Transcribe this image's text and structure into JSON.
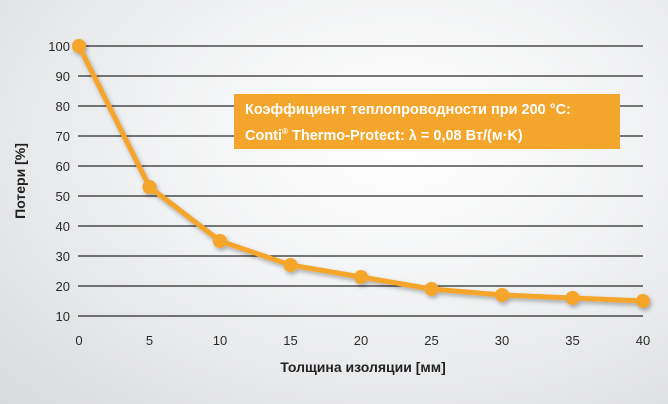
{
  "chart_data": {
    "type": "line",
    "title": "",
    "xlabel": "Толщина изоляции [мм]",
    "ylabel": "Потери [%]",
    "x": [
      0,
      5,
      10,
      15,
      20,
      25,
      30,
      35,
      40
    ],
    "series": [
      {
        "name": "Conti Thermo-Protect",
        "values": [
          100,
          53,
          35,
          27,
          23,
          19,
          17,
          16,
          15
        ]
      }
    ],
    "xlim": [
      0,
      40
    ],
    "ylim": [
      10,
      100
    ],
    "xticks": [
      0,
      5,
      10,
      15,
      20,
      25,
      30,
      35,
      40
    ],
    "yticks": [
      10,
      20,
      30,
      40,
      50,
      60,
      70,
      80,
      90,
      100
    ],
    "grid": "horizontal",
    "colors": {
      "line": "#f4a52b",
      "grid": "#2b2b2b",
      "box": "#f4a52b"
    },
    "annotation": {
      "line1": "Коэффициент теплопроводности при 200 °C:",
      "line2_brand": "Conti",
      "line2_mark": "®",
      "line2_rest": " Thermo-Protect: λ = 0,08 Вт/(м·K)"
    }
  }
}
